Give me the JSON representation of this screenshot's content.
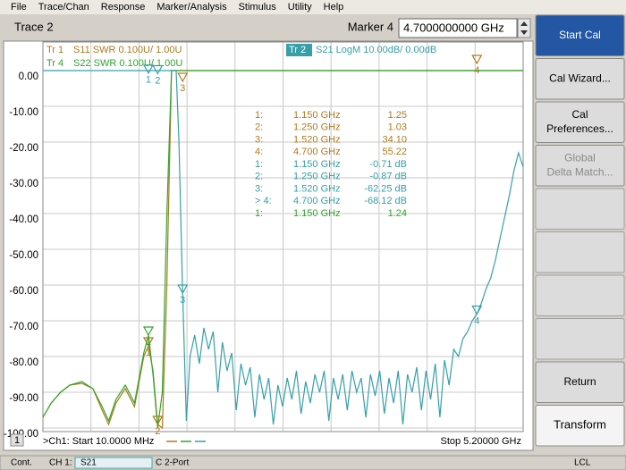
{
  "menu": [
    "File",
    "Trace/Chan",
    "Response",
    "Marker/Analysis",
    "Stimulus",
    "Utility",
    "Help"
  ],
  "toolbar": {
    "trace": "Trace 2",
    "marker_label": "Marker 4",
    "marker_value": "4.7000000000 GHz"
  },
  "softkeys": [
    {
      "lines": [
        "Start Cal"
      ]
    },
    {
      "lines": [
        "Cal Wizard..."
      ]
    },
    {
      "lines": [
        "Cal",
        "Preferences..."
      ]
    },
    {
      "lines": [
        "Global",
        "Delta Match..."
      ]
    },
    {
      "lines": [
        "Return"
      ]
    },
    {
      "lines": [
        "Transform"
      ]
    }
  ],
  "status": [
    "Cont.",
    "CH 1:",
    "S21",
    "C 2-Port",
    "LCL"
  ],
  "chart_data": {
    "type": "line",
    "channel_number": "1",
    "start_label": ">Ch1: Start 10.0000 MHz",
    "stop_label": "Stop 5.20000 GHz",
    "xlim": [
      0.01,
      5.2
    ],
    "ylim": [
      -100,
      8
    ],
    "yticks": [
      {
        "value": 0,
        "label": "0.00"
      },
      {
        "value": -10,
        "label": "-10.00"
      },
      {
        "value": -20,
        "label": "-20.00"
      },
      {
        "value": -30,
        "label": "-30.00"
      },
      {
        "value": -40,
        "label": "-40.00"
      },
      {
        "value": -50,
        "label": "-50.00"
      },
      {
        "value": -60,
        "label": "-60.00"
      },
      {
        "value": -70,
        "label": "-70.00"
      },
      {
        "value": -80,
        "label": "-80.00"
      },
      {
        "value": -90,
        "label": "-90.00"
      },
      {
        "value": -100,
        "label": "-100.00"
      }
    ],
    "series": [
      {
        "trace": "Tr 1",
        "name": "S11 SWR 0.100U/ 1.00U",
        "color": "#b07a1c",
        "x": [
          0.01,
          0.1,
          0.2,
          0.3,
          0.43,
          0.55,
          0.65,
          0.72,
          0.8,
          0.9,
          1.0,
          1.1,
          1.15,
          1.2,
          1.25,
          1.3,
          1.35,
          1.4,
          1.5,
          2,
          3,
          4,
          5.2
        ],
        "values": [
          -97,
          -93,
          -90,
          -88,
          -87.5,
          -89,
          -95,
          -99,
          -93,
          -89,
          -94,
          -80,
          -77,
          -84,
          -99,
          -100,
          -60,
          0,
          0,
          0,
          0,
          0,
          0
        ],
        "markers": [
          {
            "label": "1",
            "x": 1.15,
            "value": -77
          },
          {
            "label": "2",
            "x": 1.25,
            "value": -99
          },
          {
            "label": "3",
            "x": 1.52,
            "value": -3
          },
          {
            "label": "4",
            "x": 4.7,
            "value": 2
          }
        ]
      },
      {
        "trace": "Tr 4",
        "name": "S22 SWR 0.100U/ 1.00U",
        "color": "#2fa62f",
        "x": [
          0.01,
          0.1,
          0.2,
          0.3,
          0.43,
          0.55,
          0.65,
          0.72,
          0.8,
          0.9,
          1.0,
          1.1,
          1.15,
          1.2,
          1.25,
          1.3,
          1.35,
          1.4,
          1.5,
          2,
          3,
          4,
          5.2
        ],
        "values": [
          -97,
          -93,
          -90,
          -88,
          -87,
          -89,
          -94,
          -98,
          -92,
          -88,
          -93,
          -79,
          -74,
          -85,
          -100,
          -90,
          -40,
          0,
          0,
          0,
          0,
          0,
          0
        ],
        "markers": [
          {
            "label": "1",
            "x": 1.15,
            "value": -74
          }
        ]
      },
      {
        "trace": "Tr 2",
        "name": "S21 LogM 10.00dB/ 0.00dB",
        "color": "#35a0aa",
        "x": [
          0.01,
          0.5,
          1.0,
          1.45,
          1.48,
          1.52,
          1.56,
          1.6,
          1.65,
          1.7,
          1.75,
          1.8,
          1.85,
          1.9,
          1.95,
          2.0,
          2.05,
          2.1,
          2.15,
          2.2,
          2.25,
          2.3,
          2.35,
          2.4,
          2.45,
          2.5,
          2.55,
          2.6,
          2.65,
          2.7,
          2.75,
          2.8,
          2.85,
          2.9,
          2.95,
          3.0,
          3.05,
          3.1,
          3.15,
          3.2,
          3.25,
          3.3,
          3.35,
          3.4,
          3.45,
          3.5,
          3.55,
          3.6,
          3.65,
          3.7,
          3.75,
          3.8,
          3.85,
          3.9,
          3.95,
          4.0,
          4.05,
          4.1,
          4.15,
          4.2,
          4.25,
          4.3,
          4.35,
          4.4,
          4.45,
          4.5,
          4.55,
          4.6,
          4.65,
          4.7,
          4.75,
          4.8,
          4.85,
          4.9,
          4.95,
          5.0,
          5.05,
          5.1,
          5.15,
          5.2
        ],
        "values": [
          0,
          0,
          0,
          0,
          -20,
          -62,
          -98,
          -80,
          -74,
          -82,
          -72,
          -78,
          -73,
          -90,
          -76,
          -84,
          -79,
          -95,
          -82,
          -88,
          -83,
          -97,
          -85,
          -92,
          -86,
          -99,
          -88,
          -94,
          -86,
          -92,
          -84,
          -96,
          -87,
          -93,
          -85,
          -90,
          -84,
          -98,
          -86,
          -92,
          -85,
          -95,
          -84,
          -90,
          -86,
          -97,
          -85,
          -91,
          -84,
          -96,
          -86,
          -93,
          -84,
          -99,
          -85,
          -90,
          -83,
          -95,
          -84,
          -92,
          -82,
          -97,
          -81,
          -88,
          -78,
          -80,
          -75,
          -73,
          -70,
          -68.12,
          -65,
          -61,
          -58,
          -53,
          -47,
          -41,
          -35,
          -28,
          -23,
          -27
        ],
        "markers": [
          {
            "label": "1",
            "x": 1.15,
            "value": -0.71
          },
          {
            "label": "2",
            "x": 1.25,
            "value": -0.87
          },
          {
            "label": "3",
            "x": 1.52,
            "value": -62.25
          },
          {
            "label": "4",
            "x": 4.7,
            "value": -68.12
          }
        ]
      }
    ],
    "marker_table": [
      {
        "color": "#b07a1c",
        "cells": [
          "1:",
          "1.150 GHz",
          "1.25"
        ]
      },
      {
        "color": "#b07a1c",
        "cells": [
          "2:",
          "1.250 GHz",
          "1.03"
        ]
      },
      {
        "color": "#b07a1c",
        "cells": [
          "3:",
          "1.520 GHz",
          "34.10"
        ]
      },
      {
        "color": "#b07a1c",
        "cells": [
          "4:",
          "4.700 GHz",
          "55.22"
        ]
      },
      {
        "color": "#35a0aa",
        "cells": [
          "1:",
          "1.150 GHz",
          "-0.71 dB"
        ]
      },
      {
        "color": "#35a0aa",
        "cells": [
          "2:",
          "1.250 GHz",
          "-0.87 dB"
        ]
      },
      {
        "color": "#35a0aa",
        "cells": [
          "3:",
          "1.520 GHz",
          "-62.25 dB"
        ]
      },
      {
        "color": "#35a0aa",
        "cells": [
          "> 4:",
          "4.700 GHz",
          "-68.12 dB"
        ]
      },
      {
        "color": "#2fa62f",
        "cells": [
          "1:",
          "1.150 GHz",
          "1.24"
        ]
      }
    ]
  }
}
